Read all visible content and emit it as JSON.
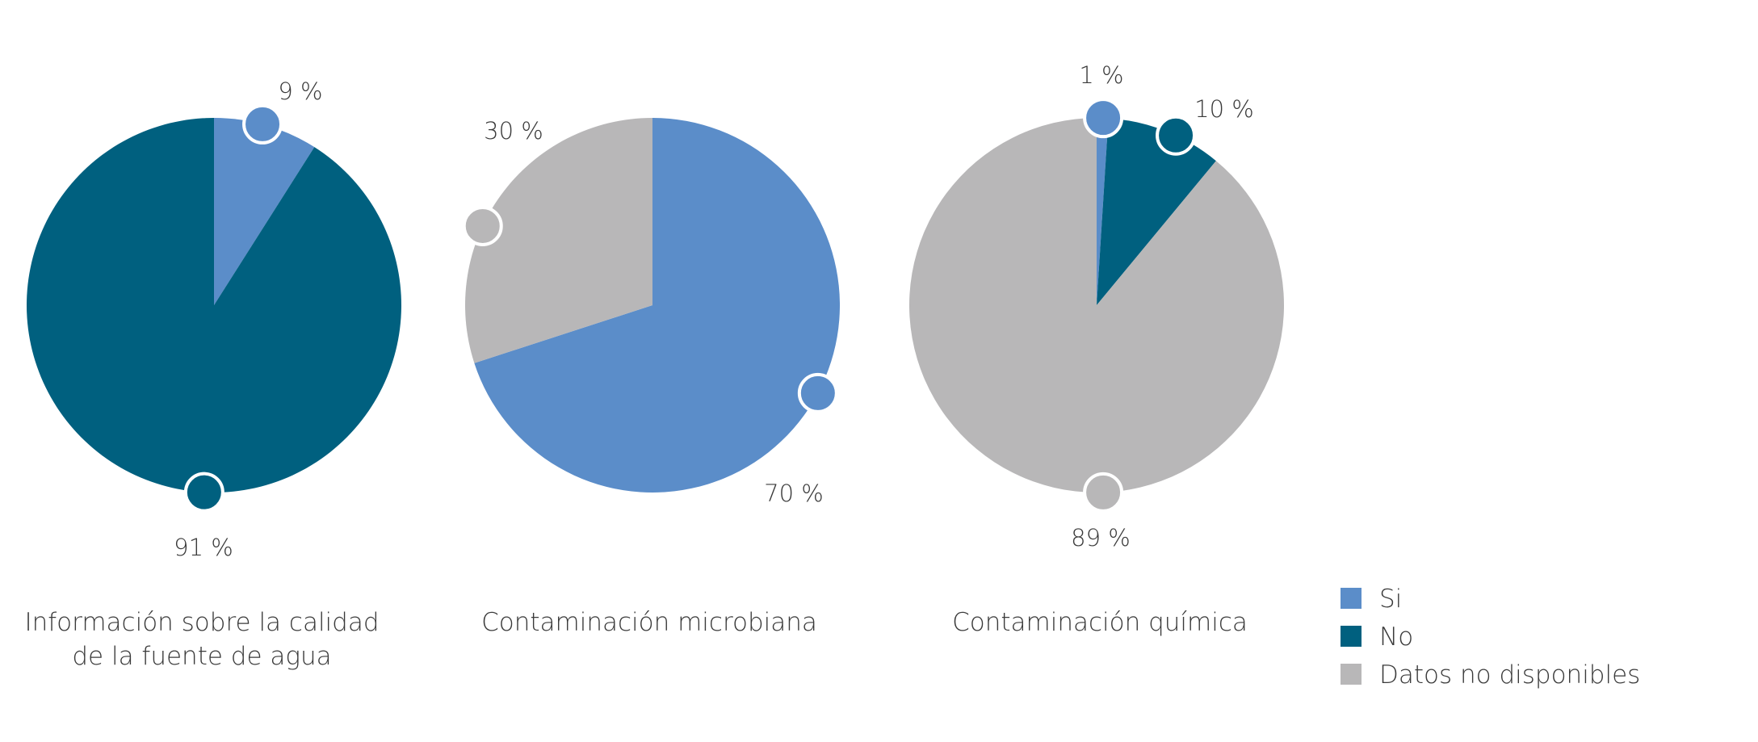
{
  "colors": {
    "si": "#5B8DC9",
    "no": "#00607F",
    "nd": "#B8B7B8"
  },
  "legend": [
    {
      "key": "si",
      "label": "Si"
    },
    {
      "key": "no",
      "label": "No"
    },
    {
      "key": "nd",
      "label": "Datos no disponibles"
    }
  ],
  "chart_data": [
    {
      "type": "pie",
      "caption": [
        "Información sobre la calidad",
        "de la fuente de agua"
      ],
      "slices": [
        {
          "key": "si",
          "value": 9,
          "label": "9 %"
        },
        {
          "key": "no",
          "value": 91,
          "label": "91 %"
        }
      ]
    },
    {
      "type": "pie",
      "caption": [
        "Contaminación microbiana"
      ],
      "slices": [
        {
          "key": "si",
          "value": 70,
          "label": "70 %"
        },
        {
          "key": "nd",
          "value": 30,
          "label": "30 %"
        }
      ]
    },
    {
      "type": "pie",
      "caption": [
        "Contaminación química"
      ],
      "slices": [
        {
          "key": "si",
          "value": 1,
          "label": "1 %"
        },
        {
          "key": "no",
          "value": 10,
          "label": "10 %"
        },
        {
          "key": "nd",
          "value": 89,
          "label": "89 %"
        }
      ]
    }
  ]
}
